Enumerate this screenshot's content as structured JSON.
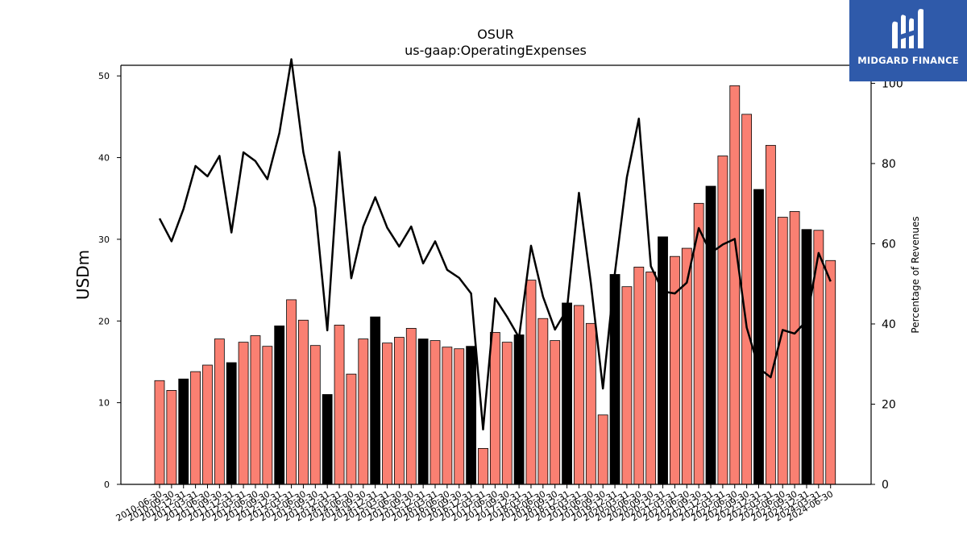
{
  "chart_data": {
    "type": "bar",
    "title": "OSUR",
    "subtitle": "us-gaap:OperatingExpenses",
    "ylabel": "USDm",
    "y2label": "Percentage of Revenues",
    "ylim": [
      0,
      51.3
    ],
    "y2lim": [
      0,
      104.5
    ],
    "yticks": [
      0,
      10,
      20,
      30,
      40,
      50
    ],
    "y2ticks": [
      0,
      20,
      40,
      60,
      80,
      100
    ],
    "colors": {
      "bar": "#fa8072",
      "bar_q4": "#000000",
      "line": "#000000"
    },
    "categories": [
      "2010-06-30",
      "2010-09-30",
      "2010-12-31",
      "2011-03-31",
      "2011-06-30",
      "2011-09-30",
      "2011-12-31",
      "2012-03-31",
      "2012-06-30",
      "2012-09-30",
      "2012-12-31",
      "2013-03-31",
      "2013-06-30",
      "2013-09-30",
      "2013-12-31",
      "2014-03-31",
      "2014-06-30",
      "2014-09-30",
      "2014-12-31",
      "2015-03-31",
      "2015-06-30",
      "2015-09-30",
      "2015-12-31",
      "2016-03-31",
      "2016-06-30",
      "2016-09-30",
      "2016-12-31",
      "2017-03-31",
      "2017-06-30",
      "2017-09-30",
      "2017-12-31",
      "2018-03-31",
      "2018-06-30",
      "2018-09-30",
      "2018-12-31",
      "2019-03-31",
      "2019-06-30",
      "2019-09-30",
      "2019-12-31",
      "2020-03-31",
      "2020-06-30",
      "2020-09-30",
      "2020-12-31",
      "2021-03-31",
      "2021-06-30",
      "2021-09-30",
      "2021-12-31",
      "2022-03-31",
      "2022-06-30",
      "2022-09-30",
      "2022-12-31",
      "2023-03-31",
      "2023-06-30",
      "2023-09-30",
      "2023-12-31",
      "2024-03-31",
      "2024-06-30"
    ],
    "series": [
      {
        "kind": "bar",
        "values": [
          12.7,
          11.5,
          12.9,
          13.8,
          14.6,
          17.8,
          14.9,
          17.4,
          18.2,
          16.9,
          19.4,
          22.6,
          20.1,
          17.0,
          11.0,
          19.5,
          13.5,
          17.8,
          20.5,
          17.3,
          18.0,
          19.1,
          17.8,
          17.6,
          16.8,
          16.6,
          16.9,
          4.4,
          18.6,
          17.4,
          18.3,
          25.0,
          20.3,
          17.6,
          22.2,
          21.9,
          19.7,
          8.5,
          25.7,
          24.2,
          26.6,
          26.0,
          30.3,
          27.9,
          28.9,
          34.4,
          36.5,
          40.2,
          48.8,
          45.3,
          36.1,
          41.5,
          32.7,
          33.4,
          31.2,
          31.1,
          27.4
        ]
      },
      {
        "kind": "line",
        "axis": "right",
        "values": [
          66.3,
          60.6,
          68.7,
          79.4,
          76.8,
          81.9,
          62.8,
          82.8,
          80.6,
          76.1,
          87.6,
          106.0,
          82.8,
          68.9,
          38.4,
          82.9,
          51.4,
          64.3,
          71.6,
          64.0,
          59.3,
          64.3,
          55.1,
          60.6,
          53.5,
          51.5,
          47.6,
          13.7,
          46.4,
          41.8,
          36.6,
          59.5,
          46.8,
          38.6,
          43.6,
          72.7,
          50.0,
          23.9,
          52.7,
          76.6,
          91.2,
          54.4,
          48.1,
          47.6,
          50.3,
          63.9,
          57.7,
          59.8,
          61.2,
          39.1,
          29.0,
          26.7,
          38.5,
          37.6,
          40.8,
          57.7,
          50.6
        ]
      }
    ]
  },
  "logo": {
    "text": "MIDGARD FINANCE"
  }
}
